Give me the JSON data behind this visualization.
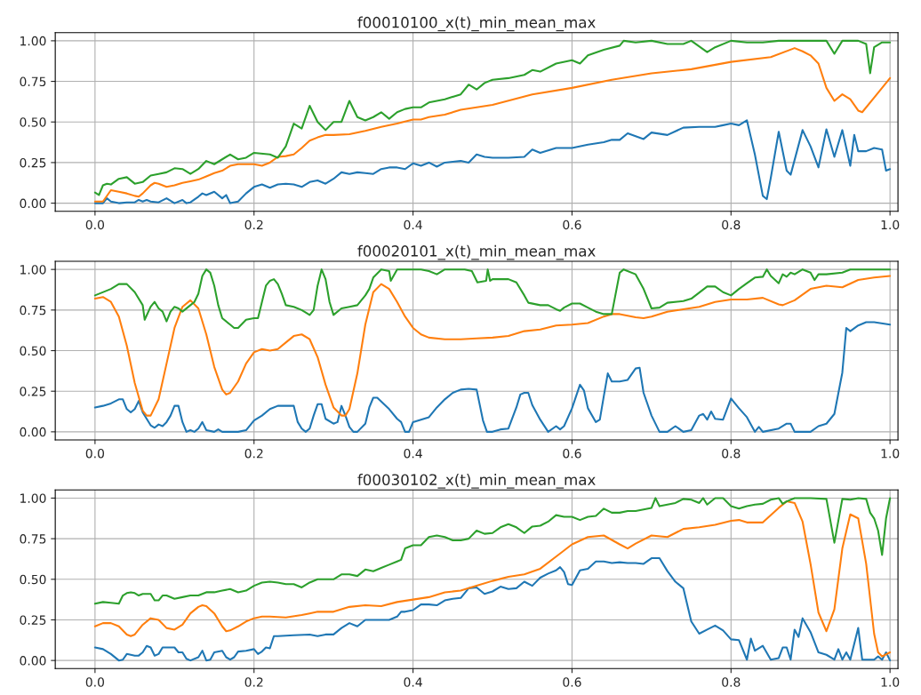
{
  "chart_data": [
    {
      "type": "line",
      "title": "f00010100_x(t)_min_mean_max",
      "xlim": [
        -0.05,
        1.01
      ],
      "ylim": [
        -0.05,
        1.05
      ],
      "grid": true,
      "xticks": [
        {
          "value": 0,
          "label": "0.0"
        },
        {
          "value": 0.2,
          "label": "0.2"
        },
        {
          "value": 0.4,
          "label": "0.4"
        },
        {
          "value": 0.6,
          "label": "0.6"
        },
        {
          "value": 0.8,
          "label": "0.8"
        },
        {
          "value": 1,
          "label": "1.0"
        }
      ],
      "yticks": [
        {
          "value": 0,
          "label": "0.00"
        },
        {
          "value": 0.25,
          "label": "0.25"
        },
        {
          "value": 0.5,
          "label": "0.50"
        },
        {
          "value": 0.75,
          "label": "0.75"
        },
        {
          "value": 1,
          "label": "1.00"
        }
      ],
      "series": [
        {
          "color": "#1f77b4",
          "x": [
            0,
            0.01,
            0.015,
            0.02,
            0.03,
            0.04,
            0.05,
            0.055,
            0.06,
            0.065,
            0.07,
            0.08,
            0.09,
            0.1,
            0.11,
            0.115,
            0.12,
            0.13,
            0.135,
            0.14,
            0.15,
            0.16,
            0.165,
            0.17,
            0.18,
            0.19,
            0.2,
            0.21,
            0.22,
            0.23,
            0.24,
            0.25,
            0.26,
            0.27,
            0.28,
            0.29,
            0.3,
            0.31,
            0.32,
            0.33,
            0.34,
            0.35,
            0.36,
            0.37,
            0.38,
            0.39,
            0.4,
            0.41,
            0.42,
            0.43,
            0.44,
            0.45,
            0.46,
            0.47,
            0.48,
            0.49,
            0.5,
            0.52,
            0.54,
            0.55,
            0.56,
            0.58,
            0.6,
            0.62,
            0.64,
            0.65,
            0.66,
            0.67,
            0.69,
            0.7,
            0.72,
            0.74,
            0.76,
            0.78,
            0.79,
            0.8,
            0.81,
            0.82,
            0.83,
            0.84,
            0.845,
            0.85,
            0.86,
            0.87,
            0.875,
            0.89,
            0.9,
            0.91,
            0.92,
            0.93,
            0.94,
            0.95,
            0.955,
            0.96,
            0.97,
            0.98,
            0.99,
            0.995,
            1.0
          ],
          "values": [
            0,
            0,
            0.03,
            0.01,
            0,
            0.005,
            0.005,
            0.02,
            0.01,
            0.02,
            0.01,
            0.005,
            0.03,
            0,
            0.02,
            0,
            0.005,
            0.04,
            0.06,
            0.05,
            0.07,
            0.03,
            0.05,
            0,
            0.01,
            0.06,
            0.1,
            0.115,
            0.095,
            0.115,
            0.12,
            0.115,
            0.1,
            0.13,
            0.14,
            0.12,
            0.15,
            0.19,
            0.18,
            0.19,
            0.185,
            0.18,
            0.21,
            0.22,
            0.22,
            0.21,
            0.245,
            0.23,
            0.25,
            0.225,
            0.25,
            0.255,
            0.26,
            0.25,
            0.3,
            0.285,
            0.28,
            0.28,
            0.285,
            0.33,
            0.31,
            0.34,
            0.34,
            0.36,
            0.375,
            0.39,
            0.39,
            0.43,
            0.395,
            0.435,
            0.42,
            0.465,
            0.47,
            0.47,
            0.48,
            0.49,
            0.48,
            0.51,
            0.3,
            0.045,
            0.025,
            0.155,
            0.44,
            0.2,
            0.175,
            0.45,
            0.35,
            0.22,
            0.455,
            0.285,
            0.45,
            0.23,
            0.42,
            0.32,
            0.32,
            0.34,
            0.33,
            0.2,
            0.21
          ]
        },
        {
          "color": "#ff7f0e",
          "x": [
            0,
            0.01,
            0.02,
            0.03,
            0.04,
            0.05,
            0.055,
            0.06,
            0.07,
            0.075,
            0.08,
            0.09,
            0.1,
            0.11,
            0.12,
            0.13,
            0.14,
            0.15,
            0.16,
            0.17,
            0.18,
            0.19,
            0.2,
            0.21,
            0.22,
            0.23,
            0.24,
            0.25,
            0.26,
            0.27,
            0.28,
            0.29,
            0.3,
            0.32,
            0.34,
            0.36,
            0.38,
            0.4,
            0.41,
            0.42,
            0.44,
            0.46,
            0.48,
            0.5,
            0.55,
            0.6,
            0.65,
            0.7,
            0.75,
            0.8,
            0.85,
            0.88,
            0.89,
            0.9,
            0.91,
            0.92,
            0.93,
            0.94,
            0.95,
            0.96,
            0.965,
            0.98,
            1.0
          ],
          "values": [
            0.01,
            0.01,
            0.08,
            0.07,
            0.06,
            0.045,
            0.04,
            0.06,
            0.11,
            0.125,
            0.12,
            0.1,
            0.11,
            0.125,
            0.135,
            0.145,
            0.165,
            0.185,
            0.2,
            0.23,
            0.24,
            0.24,
            0.24,
            0.23,
            0.25,
            0.285,
            0.29,
            0.3,
            0.34,
            0.385,
            0.405,
            0.42,
            0.42,
            0.425,
            0.445,
            0.47,
            0.49,
            0.515,
            0.515,
            0.53,
            0.545,
            0.575,
            0.59,
            0.605,
            0.67,
            0.71,
            0.76,
            0.8,
            0.825,
            0.87,
            0.9,
            0.955,
            0.935,
            0.91,
            0.86,
            0.71,
            0.63,
            0.67,
            0.64,
            0.57,
            0.56,
            0.65,
            0.77
          ]
        },
        {
          "color": "#2ca02c",
          "x": [
            0,
            0.005,
            0.01,
            0.015,
            0.02,
            0.03,
            0.04,
            0.05,
            0.06,
            0.07,
            0.08,
            0.09,
            0.1,
            0.11,
            0.12,
            0.13,
            0.14,
            0.15,
            0.16,
            0.17,
            0.18,
            0.19,
            0.2,
            0.22,
            0.23,
            0.24,
            0.25,
            0.26,
            0.27,
            0.28,
            0.29,
            0.3,
            0.31,
            0.32,
            0.33,
            0.34,
            0.35,
            0.36,
            0.37,
            0.38,
            0.39,
            0.4,
            0.41,
            0.42,
            0.44,
            0.46,
            0.47,
            0.48,
            0.49,
            0.5,
            0.52,
            0.54,
            0.55,
            0.56,
            0.58,
            0.6,
            0.61,
            0.62,
            0.64,
            0.66,
            0.665,
            0.68,
            0.7,
            0.72,
            0.74,
            0.75,
            0.77,
            0.78,
            0.8,
            0.82,
            0.84,
            0.86,
            0.88,
            0.9,
            0.92,
            0.93,
            0.94,
            0.96,
            0.97,
            0.975,
            0.98,
            0.99,
            1.0
          ],
          "values": [
            0.065,
            0.05,
            0.11,
            0.12,
            0.115,
            0.15,
            0.16,
            0.12,
            0.13,
            0.17,
            0.18,
            0.19,
            0.215,
            0.21,
            0.18,
            0.21,
            0.26,
            0.24,
            0.27,
            0.3,
            0.27,
            0.28,
            0.31,
            0.3,
            0.28,
            0.35,
            0.49,
            0.46,
            0.6,
            0.5,
            0.45,
            0.5,
            0.5,
            0.63,
            0.53,
            0.51,
            0.53,
            0.56,
            0.52,
            0.56,
            0.58,
            0.59,
            0.59,
            0.62,
            0.64,
            0.67,
            0.73,
            0.7,
            0.74,
            0.76,
            0.77,
            0.79,
            0.82,
            0.81,
            0.86,
            0.88,
            0.86,
            0.91,
            0.945,
            0.97,
            1.0,
            0.99,
            1.0,
            0.98,
            0.98,
            1.0,
            0.93,
            0.96,
            1.0,
            0.99,
            0.99,
            1.0,
            1.0,
            1.0,
            1.0,
            0.92,
            1.0,
            1.0,
            0.98,
            0.8,
            0.96,
            0.99,
            0.99
          ]
        }
      ]
    },
    {
      "type": "line",
      "title": "f00020101_x(t)_min_mean_max",
      "xlim": [
        -0.05,
        1.01
      ],
      "ylim": [
        -0.05,
        1.05
      ],
      "grid": true,
      "xticks": [
        {
          "value": 0,
          "label": "0.0"
        },
        {
          "value": 0.2,
          "label": "0.2"
        },
        {
          "value": 0.4,
          "label": "0.4"
        },
        {
          "value": 0.6,
          "label": "0.6"
        },
        {
          "value": 0.8,
          "label": "0.8"
        },
        {
          "value": 1,
          "label": "1.0"
        }
      ],
      "yticks": [
        {
          "value": 0,
          "label": "0.00"
        },
        {
          "value": 0.25,
          "label": "0.25"
        },
        {
          "value": 0.5,
          "label": "0.50"
        },
        {
          "value": 0.75,
          "label": "0.75"
        },
        {
          "value": 1,
          "label": "1.00"
        }
      ],
      "series": [
        {
          "color": "#1f77b4",
          "x": [
            0,
            0.01,
            0.02,
            0.03,
            0.035,
            0.04,
            0.045,
            0.05,
            0.055,
            0.06,
            0.07,
            0.075,
            0.08,
            0.085,
            0.09,
            0.095,
            0.1,
            0.105,
            0.11,
            0.115,
            0.12,
            0.125,
            0.13,
            0.135,
            0.14,
            0.15,
            0.155,
            0.16,
            0.17,
            0.18,
            0.19,
            0.2,
            0.21,
            0.22,
            0.23,
            0.24,
            0.25,
            0.255,
            0.26,
            0.265,
            0.27,
            0.275,
            0.28,
            0.285,
            0.29,
            0.3,
            0.305,
            0.31,
            0.315,
            0.32,
            0.325,
            0.33,
            0.34,
            0.345,
            0.35,
            0.355,
            0.37,
            0.38,
            0.385,
            0.39,
            0.395,
            0.4,
            0.41,
            0.42,
            0.43,
            0.44,
            0.45,
            0.46,
            0.47,
            0.48,
            0.488,
            0.493,
            0.5,
            0.51,
            0.52,
            0.53,
            0.535,
            0.54,
            0.545,
            0.55,
            0.56,
            0.57,
            0.58,
            0.585,
            0.59,
            0.6,
            0.61,
            0.615,
            0.62,
            0.63,
            0.635,
            0.64,
            0.645,
            0.65,
            0.66,
            0.67,
            0.68,
            0.685,
            0.69,
            0.7,
            0.71,
            0.72,
            0.73,
            0.74,
            0.75,
            0.76,
            0.765,
            0.77,
            0.775,
            0.78,
            0.79,
            0.8,
            0.81,
            0.82,
            0.83,
            0.835,
            0.84,
            0.86,
            0.87,
            0.875,
            0.88,
            0.9,
            0.91,
            0.92,
            0.93,
            0.94,
            0.945,
            0.95,
            0.96,
            0.97,
            0.98,
            1.0
          ],
          "values": [
            0.15,
            0.16,
            0.175,
            0.2,
            0.2,
            0.14,
            0.12,
            0.14,
            0.19,
            0.12,
            0.04,
            0.025,
            0.045,
            0.035,
            0.06,
            0.1,
            0.16,
            0.16,
            0.06,
            0,
            0.01,
            0,
            0.02,
            0.06,
            0.01,
            0,
            0.015,
            0,
            0,
            0,
            0.01,
            0.07,
            0.1,
            0.14,
            0.16,
            0.16,
            0.16,
            0.06,
            0.02,
            0,
            0.02,
            0.1,
            0.17,
            0.17,
            0.08,
            0.05,
            0.06,
            0.16,
            0.1,
            0.03,
            0,
            0,
            0.05,
            0.15,
            0.21,
            0.21,
            0.14,
            0.08,
            0.06,
            0,
            0,
            0.06,
            0.075,
            0.09,
            0.15,
            0.2,
            0.24,
            0.26,
            0.265,
            0.26,
            0.07,
            0,
            0,
            0.015,
            0.02,
            0.15,
            0.23,
            0.24,
            0.24,
            0.165,
            0.075,
            0,
            0.035,
            0.015,
            0.035,
            0.145,
            0.29,
            0.255,
            0.145,
            0.06,
            0.075,
            0.22,
            0.36,
            0.31,
            0.31,
            0.32,
            0.39,
            0.395,
            0.24,
            0.1,
            0,
            0,
            0.035,
            0,
            0.01,
            0.1,
            0.11,
            0.075,
            0.125,
            0.08,
            0.075,
            0.205,
            0.145,
            0.09,
            0,
            0.03,
            0,
            0.02,
            0.05,
            0.05,
            0,
            0,
            0.035,
            0.05,
            0.11,
            0.365,
            0.64,
            0.62,
            0.655,
            0.675,
            0.675,
            0.66
          ]
        },
        {
          "color": "#ff7f0e",
          "x": [
            0,
            0.01,
            0.02,
            0.03,
            0.04,
            0.05,
            0.06,
            0.065,
            0.07,
            0.08,
            0.09,
            0.1,
            0.11,
            0.12,
            0.13,
            0.14,
            0.15,
            0.16,
            0.165,
            0.17,
            0.18,
            0.19,
            0.2,
            0.21,
            0.22,
            0.23,
            0.24,
            0.25,
            0.26,
            0.27,
            0.28,
            0.29,
            0.3,
            0.31,
            0.315,
            0.32,
            0.33,
            0.34,
            0.35,
            0.36,
            0.37,
            0.38,
            0.39,
            0.4,
            0.41,
            0.42,
            0.44,
            0.46,
            0.48,
            0.5,
            0.52,
            0.54,
            0.56,
            0.58,
            0.6,
            0.62,
            0.64,
            0.65,
            0.66,
            0.68,
            0.69,
            0.7,
            0.72,
            0.74,
            0.76,
            0.78,
            0.8,
            0.82,
            0.84,
            0.86,
            0.865,
            0.88,
            0.9,
            0.92,
            0.94,
            0.96,
            0.98,
            1.0
          ],
          "values": [
            0.82,
            0.83,
            0.8,
            0.71,
            0.53,
            0.3,
            0.13,
            0.1,
            0.1,
            0.2,
            0.42,
            0.64,
            0.77,
            0.81,
            0.76,
            0.6,
            0.4,
            0.26,
            0.23,
            0.24,
            0.31,
            0.42,
            0.49,
            0.51,
            0.5,
            0.51,
            0.55,
            0.59,
            0.6,
            0.57,
            0.46,
            0.29,
            0.15,
            0.1,
            0.1,
            0.14,
            0.36,
            0.66,
            0.86,
            0.91,
            0.88,
            0.8,
            0.71,
            0.64,
            0.6,
            0.58,
            0.57,
            0.57,
            0.575,
            0.58,
            0.59,
            0.62,
            0.63,
            0.655,
            0.66,
            0.67,
            0.71,
            0.725,
            0.725,
            0.705,
            0.7,
            0.71,
            0.74,
            0.755,
            0.77,
            0.8,
            0.815,
            0.815,
            0.825,
            0.785,
            0.78,
            0.81,
            0.88,
            0.9,
            0.89,
            0.935,
            0.95,
            0.96
          ]
        },
        {
          "color": "#2ca02c",
          "x": [
            0,
            0.02,
            0.03,
            0.04,
            0.05,
            0.06,
            0.0625,
            0.07,
            0.075,
            0.08,
            0.085,
            0.09,
            0.095,
            0.1,
            0.105,
            0.11,
            0.12,
            0.125,
            0.13,
            0.135,
            0.14,
            0.145,
            0.15,
            0.155,
            0.16,
            0.17,
            0.175,
            0.18,
            0.19,
            0.2,
            0.205,
            0.21,
            0.215,
            0.22,
            0.225,
            0.23,
            0.235,
            0.24,
            0.25,
            0.26,
            0.27,
            0.275,
            0.28,
            0.285,
            0.29,
            0.295,
            0.3,
            0.31,
            0.32,
            0.33,
            0.34,
            0.345,
            0.35,
            0.36,
            0.37,
            0.372,
            0.38,
            0.4,
            0.41,
            0.42,
            0.43,
            0.44,
            0.45,
            0.465,
            0.474,
            0.481,
            0.492,
            0.494,
            0.497,
            0.5,
            0.52,
            0.53,
            0.54,
            0.545,
            0.56,
            0.57,
            0.58,
            0.585,
            0.59,
            0.6,
            0.61,
            0.62,
            0.63,
            0.64,
            0.65,
            0.66,
            0.665,
            0.68,
            0.69,
            0.7,
            0.71,
            0.72,
            0.74,
            0.75,
            0.77,
            0.78,
            0.79,
            0.8,
            0.81,
            0.82,
            0.83,
            0.84,
            0.845,
            0.85,
            0.86,
            0.865,
            0.87,
            0.875,
            0.88,
            0.89,
            0.9,
            0.905,
            0.91,
            0.92,
            0.94,
            0.95,
            1.0
          ],
          "values": [
            0.84,
            0.88,
            0.91,
            0.91,
            0.86,
            0.78,
            0.69,
            0.77,
            0.8,
            0.76,
            0.74,
            0.68,
            0.74,
            0.77,
            0.76,
            0.74,
            0.78,
            0.8,
            0.85,
            0.96,
            1.0,
            0.98,
            0.9,
            0.78,
            0.7,
            0.66,
            0.64,
            0.64,
            0.69,
            0.7,
            0.7,
            0.8,
            0.9,
            0.93,
            0.94,
            0.91,
            0.85,
            0.78,
            0.77,
            0.75,
            0.72,
            0.75,
            0.9,
            1.0,
            0.94,
            0.8,
            0.72,
            0.76,
            0.77,
            0.78,
            0.84,
            0.88,
            0.95,
            1.0,
            0.99,
            0.93,
            1.0,
            1.0,
            1.0,
            0.99,
            0.97,
            1.0,
            1.0,
            1.0,
            0.99,
            0.92,
            0.93,
            1.0,
            0.93,
            0.94,
            0.94,
            0.92,
            0.84,
            0.795,
            0.78,
            0.78,
            0.755,
            0.745,
            0.765,
            0.79,
            0.79,
            0.765,
            0.74,
            0.725,
            0.725,
            0.98,
            1.0,
            0.97,
            0.88,
            0.76,
            0.765,
            0.795,
            0.805,
            0.82,
            0.895,
            0.895,
            0.86,
            0.84,
            0.88,
            0.915,
            0.95,
            0.955,
            1.0,
            0.96,
            0.915,
            0.97,
            0.955,
            0.98,
            0.97,
            1.0,
            0.98,
            0.935,
            0.97,
            0.97,
            0.98,
            1.0,
            1.0
          ]
        }
      ]
    },
    {
      "type": "line",
      "title": "f00030102_x(t)_min_mean_max",
      "xlim": [
        -0.05,
        1.01
      ],
      "ylim": [
        -0.05,
        1.05
      ],
      "grid": true,
      "xticks": [
        {
          "value": 0,
          "label": "0.0"
        },
        {
          "value": 0.2,
          "label": "0.2"
        },
        {
          "value": 0.4,
          "label": "0.4"
        },
        {
          "value": 0.6,
          "label": "0.6"
        },
        {
          "value": 0.8,
          "label": "0.8"
        },
        {
          "value": 1,
          "label": "1.0"
        }
      ],
      "yticks": [
        {
          "value": 0,
          "label": "0.00"
        },
        {
          "value": 0.25,
          "label": "0.25"
        },
        {
          "value": 0.5,
          "label": "0.50"
        },
        {
          "value": 0.75,
          "label": "0.75"
        },
        {
          "value": 1,
          "label": "1.00"
        }
      ],
      "series": [
        {
          "color": "#1f77b4",
          "x": [
            0,
            0.01,
            0.02,
            0.03,
            0.035,
            0.04,
            0.05,
            0.055,
            0.06,
            0.065,
            0.07,
            0.075,
            0.08,
            0.085,
            0.09,
            0.1,
            0.105,
            0.11,
            0.115,
            0.12,
            0.13,
            0.135,
            0.14,
            0.145,
            0.15,
            0.16,
            0.165,
            0.17,
            0.175,
            0.18,
            0.19,
            0.2,
            0.205,
            0.21,
            0.215,
            0.22,
            0.225,
            0.23,
            0.25,
            0.27,
            0.28,
            0.29,
            0.3,
            0.31,
            0.32,
            0.33,
            0.34,
            0.35,
            0.36,
            0.37,
            0.38,
            0.385,
            0.39,
            0.4,
            0.41,
            0.42,
            0.43,
            0.44,
            0.45,
            0.46,
            0.47,
            0.48,
            0.49,
            0.5,
            0.51,
            0.52,
            0.53,
            0.54,
            0.55,
            0.56,
            0.57,
            0.58,
            0.585,
            0.59,
            0.595,
            0.6,
            0.61,
            0.62,
            0.63,
            0.64,
            0.65,
            0.66,
            0.67,
            0.68,
            0.69,
            0.7,
            0.71,
            0.72,
            0.73,
            0.74,
            0.75,
            0.76,
            0.77,
            0.78,
            0.79,
            0.8,
            0.81,
            0.82,
            0.825,
            0.83,
            0.84,
            0.85,
            0.86,
            0.865,
            0.87,
            0.875,
            0.88,
            0.885,
            0.89,
            0.9,
            0.91,
            0.92,
            0.93,
            0.935,
            0.94,
            0.945,
            0.95,
            0.96,
            0.965,
            0.97,
            0.98,
            0.985,
            0.99,
            0.995,
            1.0
          ],
          "values": [
            0.08,
            0.07,
            0.04,
            0,
            0.005,
            0.04,
            0.03,
            0.03,
            0.05,
            0.09,
            0.08,
            0.03,
            0.04,
            0.08,
            0.08,
            0.08,
            0.05,
            0.05,
            0.01,
            0,
            0.02,
            0.06,
            0,
            0.005,
            0.05,
            0.06,
            0.02,
            0.005,
            0.02,
            0.055,
            0.06,
            0.07,
            0.04,
            0.055,
            0.08,
            0.075,
            0.15,
            0.15,
            0.155,
            0.16,
            0.15,
            0.16,
            0.16,
            0.2,
            0.23,
            0.21,
            0.25,
            0.25,
            0.25,
            0.25,
            0.27,
            0.3,
            0.3,
            0.31,
            0.345,
            0.345,
            0.34,
            0.37,
            0.38,
            0.385,
            0.445,
            0.45,
            0.41,
            0.425,
            0.455,
            0.44,
            0.445,
            0.485,
            0.46,
            0.51,
            0.535,
            0.555,
            0.575,
            0.545,
            0.47,
            0.465,
            0.555,
            0.565,
            0.61,
            0.61,
            0.6,
            0.605,
            0.6,
            0.6,
            0.595,
            0.63,
            0.63,
            0.55,
            0.485,
            0.445,
            0.24,
            0.165,
            0.19,
            0.215,
            0.185,
            0.13,
            0.125,
            0.005,
            0.135,
            0.06,
            0.09,
            0.005,
            0.015,
            0.08,
            0.08,
            0.005,
            0.19,
            0.145,
            0.26,
            0.175,
            0.05,
            0.035,
            0.005,
            0.07,
            0.005,
            0.05,
            0.005,
            0.2,
            0.005,
            0.005,
            0.005,
            0.025,
            0.005,
            0.05,
            0
          ]
        },
        {
          "color": "#ff7f0e",
          "x": [
            0,
            0.01,
            0.02,
            0.03,
            0.04,
            0.045,
            0.05,
            0.06,
            0.07,
            0.08,
            0.09,
            0.1,
            0.11,
            0.12,
            0.13,
            0.135,
            0.14,
            0.15,
            0.16,
            0.165,
            0.17,
            0.18,
            0.19,
            0.2,
            0.21,
            0.22,
            0.24,
            0.26,
            0.27,
            0.28,
            0.3,
            0.32,
            0.34,
            0.36,
            0.38,
            0.4,
            0.42,
            0.44,
            0.46,
            0.48,
            0.5,
            0.52,
            0.54,
            0.56,
            0.58,
            0.6,
            0.62,
            0.64,
            0.66,
            0.67,
            0.68,
            0.7,
            0.72,
            0.74,
            0.76,
            0.78,
            0.8,
            0.81,
            0.82,
            0.84,
            0.86,
            0.87,
            0.88,
            0.89,
            0.9,
            0.91,
            0.92,
            0.93,
            0.94,
            0.95,
            0.96,
            0.97,
            0.98,
            0.985,
            0.99,
            1.0
          ],
          "values": [
            0.21,
            0.23,
            0.23,
            0.21,
            0.16,
            0.15,
            0.16,
            0.22,
            0.26,
            0.25,
            0.2,
            0.19,
            0.22,
            0.29,
            0.33,
            0.34,
            0.335,
            0.29,
            0.21,
            0.18,
            0.185,
            0.21,
            0.24,
            0.26,
            0.27,
            0.27,
            0.265,
            0.28,
            0.29,
            0.3,
            0.3,
            0.33,
            0.34,
            0.335,
            0.36,
            0.375,
            0.39,
            0.42,
            0.43,
            0.46,
            0.49,
            0.515,
            0.53,
            0.565,
            0.64,
            0.715,
            0.76,
            0.77,
            0.715,
            0.69,
            0.72,
            0.77,
            0.76,
            0.81,
            0.82,
            0.835,
            0.86,
            0.865,
            0.85,
            0.85,
            0.94,
            0.98,
            0.97,
            0.855,
            0.595,
            0.295,
            0.18,
            0.315,
            0.69,
            0.9,
            0.875,
            0.595,
            0.165,
            0.05,
            0.025,
            0.05
          ]
        },
        {
          "color": "#2ca02c",
          "x": [
            0,
            0.01,
            0.02,
            0.03,
            0.035,
            0.04,
            0.045,
            0.05,
            0.055,
            0.06,
            0.07,
            0.075,
            0.08,
            0.085,
            0.09,
            0.1,
            0.11,
            0.12,
            0.13,
            0.14,
            0.15,
            0.16,
            0.17,
            0.18,
            0.19,
            0.2,
            0.21,
            0.22,
            0.23,
            0.24,
            0.25,
            0.26,
            0.27,
            0.28,
            0.3,
            0.31,
            0.32,
            0.33,
            0.34,
            0.35,
            0.36,
            0.37,
            0.38,
            0.385,
            0.39,
            0.4,
            0.41,
            0.42,
            0.43,
            0.44,
            0.45,
            0.46,
            0.47,
            0.48,
            0.49,
            0.5,
            0.51,
            0.52,
            0.53,
            0.54,
            0.55,
            0.56,
            0.57,
            0.58,
            0.59,
            0.6,
            0.61,
            0.62,
            0.63,
            0.64,
            0.65,
            0.66,
            0.67,
            0.68,
            0.69,
            0.7,
            0.705,
            0.71,
            0.72,
            0.73,
            0.74,
            0.75,
            0.76,
            0.765,
            0.77,
            0.78,
            0.79,
            0.8,
            0.81,
            0.82,
            0.83,
            0.84,
            0.85,
            0.86,
            0.865,
            0.87,
            0.88,
            0.9,
            0.92,
            0.93,
            0.94,
            0.95,
            0.96,
            0.97,
            0.975,
            0.98,
            0.985,
            0.99,
            0.995,
            1.0
          ],
          "values": [
            0.35,
            0.36,
            0.355,
            0.35,
            0.4,
            0.415,
            0.42,
            0.415,
            0.4,
            0.41,
            0.41,
            0.37,
            0.37,
            0.4,
            0.4,
            0.38,
            0.39,
            0.4,
            0.4,
            0.42,
            0.42,
            0.43,
            0.44,
            0.42,
            0.43,
            0.46,
            0.48,
            0.485,
            0.48,
            0.47,
            0.47,
            0.45,
            0.48,
            0.5,
            0.5,
            0.53,
            0.53,
            0.52,
            0.56,
            0.55,
            0.57,
            0.59,
            0.61,
            0.62,
            0.69,
            0.71,
            0.71,
            0.76,
            0.77,
            0.76,
            0.74,
            0.74,
            0.75,
            0.8,
            0.78,
            0.785,
            0.82,
            0.84,
            0.82,
            0.785,
            0.825,
            0.83,
            0.855,
            0.895,
            0.885,
            0.885,
            0.865,
            0.885,
            0.89,
            0.935,
            0.91,
            0.91,
            0.92,
            0.92,
            0.93,
            0.94,
            1.0,
            0.95,
            0.96,
            0.97,
            0.995,
            0.99,
            0.97,
            1.0,
            0.96,
            1.0,
            1.0,
            0.95,
            0.935,
            0.95,
            0.96,
            0.965,
            0.99,
            1.0,
            0.965,
            0.98,
            1.0,
            1.0,
            0.995,
            0.725,
            0.995,
            0.99,
            1.0,
            0.995,
            0.91,
            0.875,
            0.8,
            0.65,
            0.875,
            1.0
          ]
        }
      ]
    }
  ]
}
